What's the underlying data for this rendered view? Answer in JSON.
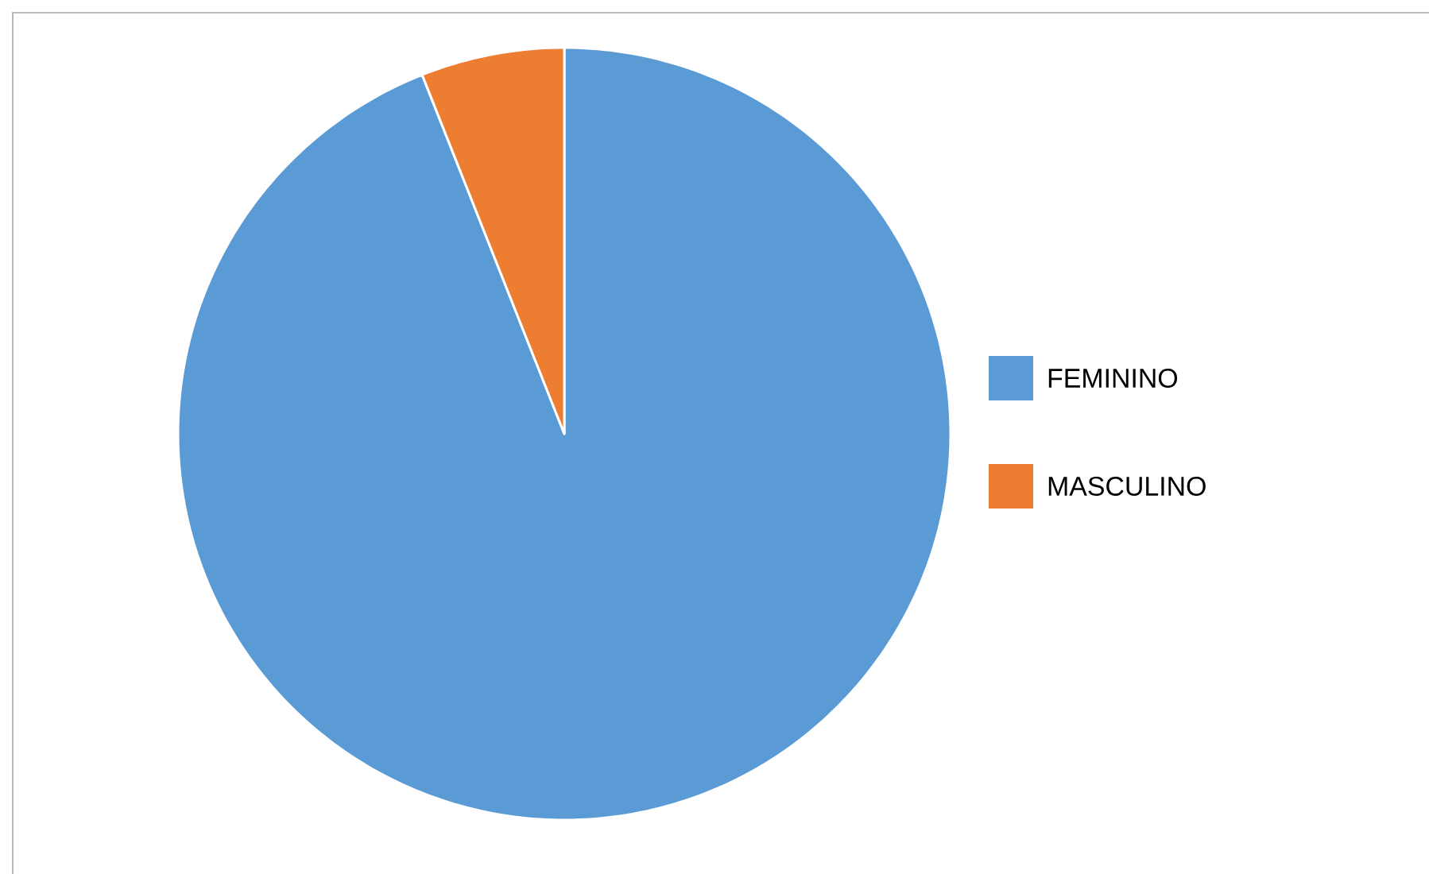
{
  "chart_data": {
    "type": "pie",
    "categories": [
      "FEMININO",
      "MASCULINO"
    ],
    "values": [
      94,
      6
    ],
    "colors": [
      "#5b9bd5",
      "#ed7d31"
    ],
    "legend": "right"
  }
}
